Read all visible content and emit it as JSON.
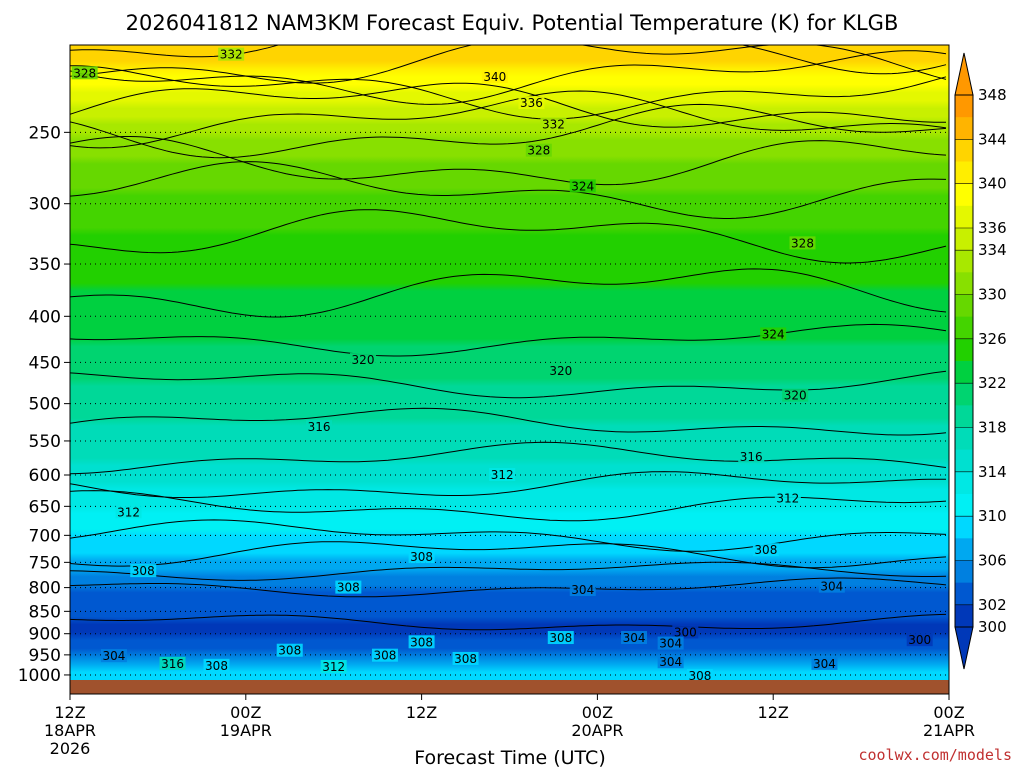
{
  "title": "2026041812 NAM3KM Forecast Equiv. Potential Temperature (K) for KLGB",
  "xlabel": "Forecast Time (UTC)",
  "credit": "coolwx.com/models",
  "chart_data": {
    "type": "heatmap",
    "variable": "Equivalent Potential Temperature (K)",
    "station": "KLGB",
    "model": "NAM3KM",
    "init": "2026041812",
    "x_ticks": [
      {
        "time_h": 0,
        "line1": "12Z",
        "line2": "18APR",
        "line3": "2026"
      },
      {
        "time_h": 12,
        "line1": "00Z",
        "line2": "19APR",
        "line3": ""
      },
      {
        "time_h": 24,
        "line1": "12Z",
        "line2": "",
        "line3": ""
      },
      {
        "time_h": 36,
        "line1": "00Z",
        "line2": "20APR",
        "line3": ""
      },
      {
        "time_h": 48,
        "line1": "12Z",
        "line2": "",
        "line3": ""
      },
      {
        "time_h": 60,
        "line1": "00Z",
        "line2": "21APR",
        "line3": ""
      }
    ],
    "xlim": [
      0,
      60
    ],
    "y_ticks": [
      250,
      300,
      350,
      400,
      450,
      500,
      550,
      600,
      650,
      700,
      750,
      800,
      850,
      900,
      950,
      1000
    ],
    "ylim": [
      200,
      1013
    ],
    "y_scale": "log-pressure",
    "grid": "dotted horizontal at y ticks",
    "colorbar": {
      "levels": [
        348,
        346,
        344,
        342,
        340,
        338,
        336,
        334,
        332,
        330,
        328,
        326,
        324,
        322,
        320,
        318,
        316,
        314,
        312,
        310,
        308,
        306,
        304,
        302,
        300
      ],
      "labels": [
        348,
        344,
        340,
        336,
        334,
        330,
        326,
        322,
        318,
        314,
        310,
        306,
        302,
        300
      ],
      "colors": [
        "#ff9800",
        "#ffb400",
        "#ffd400",
        "#ffee00",
        "#ffff00",
        "#e4f800",
        "#c8f000",
        "#a8e800",
        "#88e000",
        "#66d800",
        "#44d400",
        "#22d000",
        "#00d040",
        "#00d470",
        "#00d898",
        "#00dcb8",
        "#00e0d0",
        "#00e8e4",
        "#00f0f4",
        "#00d8ff",
        "#00a8f0",
        "#0080e0",
        "#0058d0",
        "#0038b8"
      ]
    },
    "profile": [
      {
        "p": 200,
        "theta_e": 344
      },
      {
        "p": 250,
        "theta_e": 332
      },
      {
        "p": 300,
        "theta_e": 327
      },
      {
        "p": 350,
        "theta_e": 325
      },
      {
        "p": 400,
        "theta_e": 323
      },
      {
        "p": 450,
        "theta_e": 321
      },
      {
        "p": 500,
        "theta_e": 319
      },
      {
        "p": 550,
        "theta_e": 317
      },
      {
        "p": 600,
        "theta_e": 315
      },
      {
        "p": 650,
        "theta_e": 312
      },
      {
        "p": 700,
        "theta_e": 310
      },
      {
        "p": 750,
        "theta_e": 307
      },
      {
        "p": 800,
        "theta_e": 304
      },
      {
        "p": 850,
        "theta_e": 303
      },
      {
        "p": 900,
        "theta_e": 301
      },
      {
        "p": 950,
        "theta_e": 305
      },
      {
        "p": 1000,
        "theta_e": 310
      }
    ],
    "contour_labels": [
      {
        "text": "328",
        "t": 1.0,
        "p": 215
      },
      {
        "text": "332",
        "t": 11.0,
        "p": 205
      },
      {
        "text": "340",
        "t": 29.0,
        "p": 217
      },
      {
        "text": "336",
        "t": 31.5,
        "p": 232
      },
      {
        "text": "332",
        "t": 33.0,
        "p": 245
      },
      {
        "text": "328",
        "t": 32.0,
        "p": 262
      },
      {
        "text": "324",
        "t": 35.0,
        "p": 287
      },
      {
        "text": "328",
        "t": 50.0,
        "p": 332
      },
      {
        "text": "324",
        "t": 48.0,
        "p": 419
      },
      {
        "text": "320",
        "t": 20.0,
        "p": 447
      },
      {
        "text": "320",
        "t": 33.5,
        "p": 460
      },
      {
        "text": "320",
        "t": 49.5,
        "p": 490
      },
      {
        "text": "316",
        "t": 17.0,
        "p": 531
      },
      {
        "text": "316",
        "t": 46.5,
        "p": 573
      },
      {
        "text": "312",
        "t": 29.5,
        "p": 600
      },
      {
        "text": "312",
        "t": 49.0,
        "p": 637
      },
      {
        "text": "312",
        "t": 4.0,
        "p": 660
      },
      {
        "text": "308",
        "t": 47.5,
        "p": 727
      },
      {
        "text": "308",
        "t": 24.0,
        "p": 740
      },
      {
        "text": "308",
        "t": 5.0,
        "p": 767
      },
      {
        "text": "308",
        "t": 19.0,
        "p": 800
      },
      {
        "text": "304",
        "t": 35.0,
        "p": 805
      },
      {
        "text": "304",
        "t": 52.0,
        "p": 798
      },
      {
        "text": "300",
        "t": 42.0,
        "p": 897
      },
      {
        "text": "300",
        "t": 58.0,
        "p": 915
      },
      {
        "text": "308",
        "t": 24.0,
        "p": 920
      },
      {
        "text": "308",
        "t": 33.5,
        "p": 910
      },
      {
        "text": "304",
        "t": 38.5,
        "p": 910
      },
      {
        "text": "304",
        "t": 41.0,
        "p": 923
      },
      {
        "text": "304",
        "t": 3.0,
        "p": 953
      },
      {
        "text": "308",
        "t": 15.0,
        "p": 940
      },
      {
        "text": "308",
        "t": 21.5,
        "p": 952
      },
      {
        "text": "308",
        "t": 27.0,
        "p": 960
      },
      {
        "text": "316",
        "t": 7.0,
        "p": 972
      },
      {
        "text": "308",
        "t": 10.0,
        "p": 977
      },
      {
        "text": "312",
        "t": 18.0,
        "p": 980
      },
      {
        "text": "304",
        "t": 41.0,
        "p": 968
      },
      {
        "text": "304",
        "t": 51.5,
        "p": 972
      },
      {
        "text": "308",
        "t": 43.0,
        "p": 1003
      }
    ]
  }
}
